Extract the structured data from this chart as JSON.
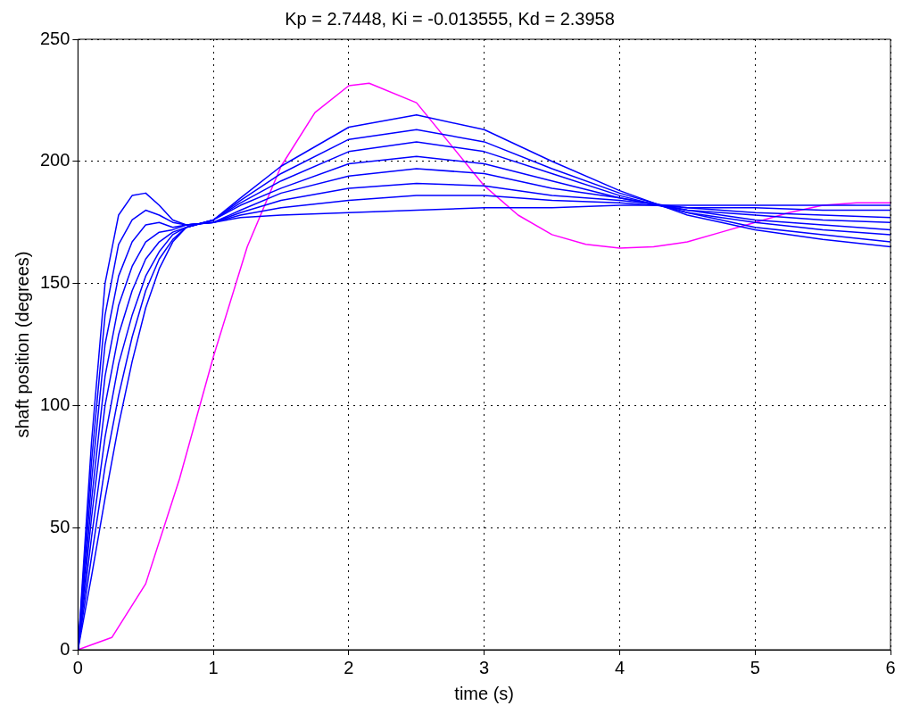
{
  "chart_data": {
    "type": "line",
    "title": "Kp = 2.7448, Ki = -0.013555, Kd = 2.3958",
    "xlabel": "time (s)",
    "ylabel": "shaft position (degrees)",
    "x": [
      0,
      0.1,
      0.2,
      0.3,
      0.4,
      0.5,
      0.6,
      0.7,
      0.8,
      1,
      1.2,
      1.5,
      2,
      2.5,
      3,
      3.5,
      4,
      4.5,
      5,
      5.5,
      6
    ],
    "series": [
      {
        "color": "#0000ff",
        "values": [
          0,
          85,
          150,
          178,
          186,
          187,
          182,
          176,
          174,
          175,
          177,
          178,
          179,
          180,
          181,
          181,
          182,
          182,
          182,
          182,
          182
        ]
      },
      {
        "color": "#0000ff",
        "values": [
          0,
          77,
          137,
          166,
          176,
          180,
          178,
          175,
          174,
          175,
          178,
          181,
          184,
          186,
          186,
          184,
          183,
          181,
          181,
          180,
          180
        ]
      },
      {
        "color": "#0000ff",
        "values": [
          0,
          69,
          125,
          153,
          167,
          174,
          175,
          173,
          174,
          175,
          179,
          184,
          189,
          191,
          190,
          186,
          184,
          181,
          179,
          178,
          177
        ]
      },
      {
        "color": "#0000ff",
        "values": [
          0,
          61,
          112,
          141,
          157,
          167,
          171,
          172,
          174,
          175,
          180,
          187,
          194,
          197,
          195,
          189,
          185,
          180,
          178,
          176,
          175
        ]
      },
      {
        "color": "#0000ff",
        "values": [
          0,
          54,
          100,
          129,
          147,
          160,
          167,
          171,
          173,
          176,
          182,
          189,
          199,
          202,
          199,
          192,
          185,
          180,
          176,
          174,
          172
        ]
      },
      {
        "color": "#0000ff",
        "values": [
          0,
          46,
          87,
          117,
          137,
          153,
          163,
          170,
          173,
          176,
          183,
          192,
          204,
          208,
          204,
          195,
          186,
          179,
          175,
          172,
          170
        ]
      },
      {
        "color": "#0000ff",
        "values": [
          0,
          38,
          75,
          104,
          128,
          147,
          160,
          168,
          173,
          176,
          184,
          195,
          209,
          213,
          208,
          197,
          187,
          179,
          173,
          170,
          167
        ]
      },
      {
        "color": "#0000ff",
        "values": [
          0,
          30,
          62,
          92,
          118,
          140,
          156,
          167,
          173,
          176,
          185,
          198,
          214,
          219,
          213,
          200,
          188,
          178,
          172,
          168,
          165
        ]
      },
      {
        "color": "#ff00ff",
        "x": [
          0,
          0.25,
          0.5,
          0.75,
          1,
          1.25,
          1.5,
          1.75,
          2,
          2.15,
          2.5,
          2.75,
          3,
          3.25,
          3.5,
          3.75,
          4,
          4.25,
          4.5,
          4.75,
          5,
          5.25,
          5.5,
          5.75,
          6
        ],
        "values": [
          0,
          5,
          27,
          70,
          120,
          165,
          198,
          220,
          231,
          232,
          224,
          207,
          190,
          178,
          170,
          166,
          164.5,
          165,
          167,
          171,
          175,
          179,
          182,
          183,
          183
        ]
      }
    ],
    "xlim": [
      0,
      6
    ],
    "xticks": [
      0,
      1,
      2,
      3,
      4,
      5,
      6
    ],
    "ylim": [
      0,
      250
    ],
    "yticks": [
      0,
      50,
      100,
      150,
      200,
      250
    ],
    "grid": true,
    "marker": "none",
    "line_style": "solid",
    "legend": false
  }
}
